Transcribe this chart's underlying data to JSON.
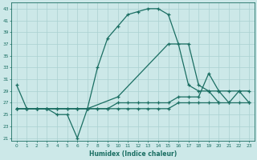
{
  "xlabel": "Humidex (Indice chaleur)",
  "bg_color": "#cce8e8",
  "grid_color": "#aad0d0",
  "line_color": "#1a6e62",
  "xlim": [
    -0.5,
    23.5
  ],
  "ylim": [
    20.5,
    44.0
  ],
  "xticks": [
    0,
    1,
    2,
    3,
    4,
    5,
    6,
    7,
    8,
    9,
    10,
    11,
    12,
    13,
    14,
    15,
    16,
    17,
    18,
    19,
    20,
    21,
    22,
    23
  ],
  "yticks": [
    21,
    23,
    25,
    27,
    29,
    31,
    33,
    35,
    37,
    39,
    41,
    43
  ],
  "s1_x": [
    0,
    1,
    2,
    3,
    4,
    5,
    6,
    7,
    8,
    9,
    10,
    11,
    12,
    13,
    14,
    15,
    16,
    17,
    18,
    19,
    20
  ],
  "s1_y": [
    30,
    26,
    26,
    26,
    25,
    25,
    21,
    26,
    33,
    38,
    40,
    42,
    42.5,
    43,
    43,
    42,
    37,
    30,
    29,
    29,
    27
  ],
  "s2_x": [
    0,
    1,
    2,
    3,
    6,
    7,
    10,
    15,
    17,
    18,
    19,
    20,
    21,
    22,
    23
  ],
  "s2_y": [
    26,
    26,
    26,
    26,
    26,
    26,
    28,
    37,
    37,
    30,
    29,
    29,
    27,
    29,
    29
  ],
  "s3_x": [
    0,
    1,
    2,
    3,
    4,
    5,
    6,
    7,
    8,
    9,
    10,
    11,
    12,
    13,
    14,
    15,
    16,
    17,
    18,
    19,
    20,
    21,
    22,
    23
  ],
  "s3_y": [
    26,
    26,
    26,
    26,
    26,
    26,
    26,
    26,
    26,
    26,
    27,
    27,
    27,
    27,
    27,
    27,
    28,
    28,
    28,
    32,
    29,
    29,
    29,
    27
  ],
  "s4_x": [
    0,
    1,
    2,
    3,
    4,
    5,
    6,
    7,
    8,
    9,
    10,
    11,
    12,
    13,
    14,
    15,
    16,
    17,
    18,
    19,
    20,
    21,
    22,
    23
  ],
  "s4_y": [
    26,
    26,
    26,
    26,
    26,
    26,
    26,
    26,
    26,
    26,
    26,
    26,
    26,
    26,
    26,
    26,
    27,
    27,
    27,
    27,
    27,
    27,
    27,
    27
  ]
}
